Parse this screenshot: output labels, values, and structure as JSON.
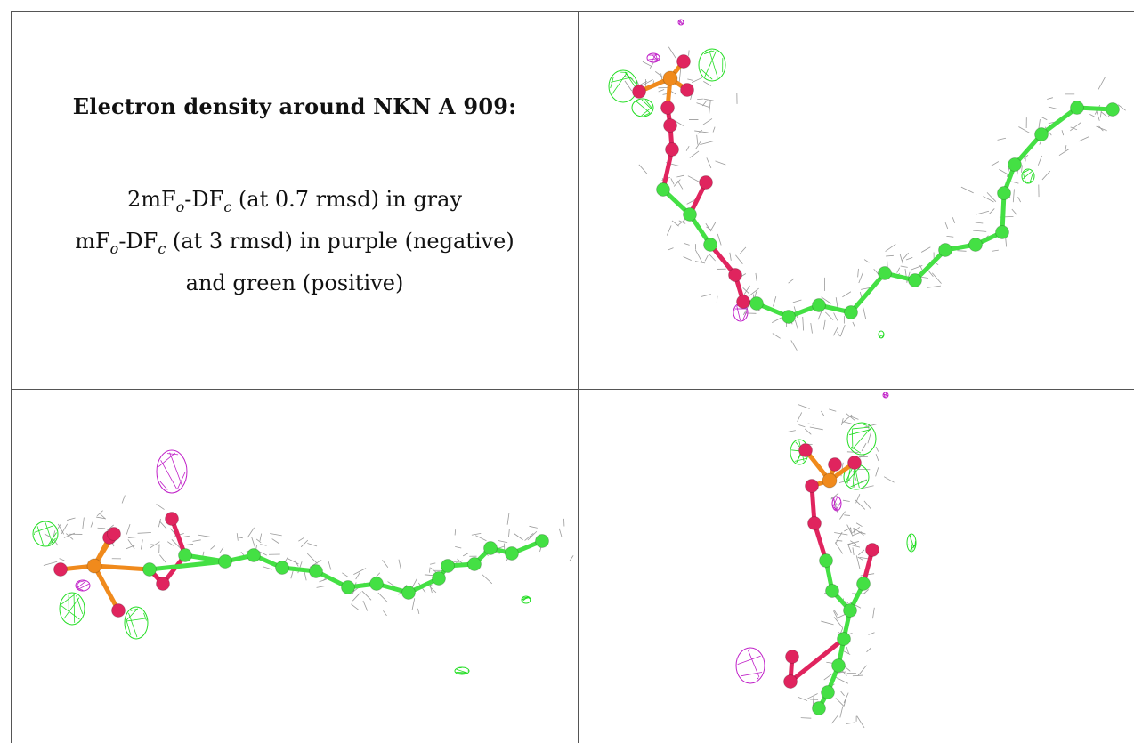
{
  "caption": {
    "title": "Electron density around NKN A 909:",
    "line1_main": "2mF",
    "line1_sub1": "o",
    "line1_mid": "-DF",
    "line1_sub2": "c",
    "line1_rest": " (at 0.7 rmsd) in gray",
    "line2_main": "mF",
    "line2_sub1": "o",
    "line2_mid": "-DF",
    "line2_sub2": "c",
    "line2_rest": " (at 3 rmsd) in purple (negative)",
    "line3": "and green (positive)"
  },
  "colors": {
    "mesh_gray": "#9a9a9a",
    "carbon_green": "#44e044",
    "oxygen_red": "#e0245e",
    "phosphorus_orange": "#f08a1c",
    "negative_purple": "#c020c8",
    "positive_green": "#22dd22"
  }
}
